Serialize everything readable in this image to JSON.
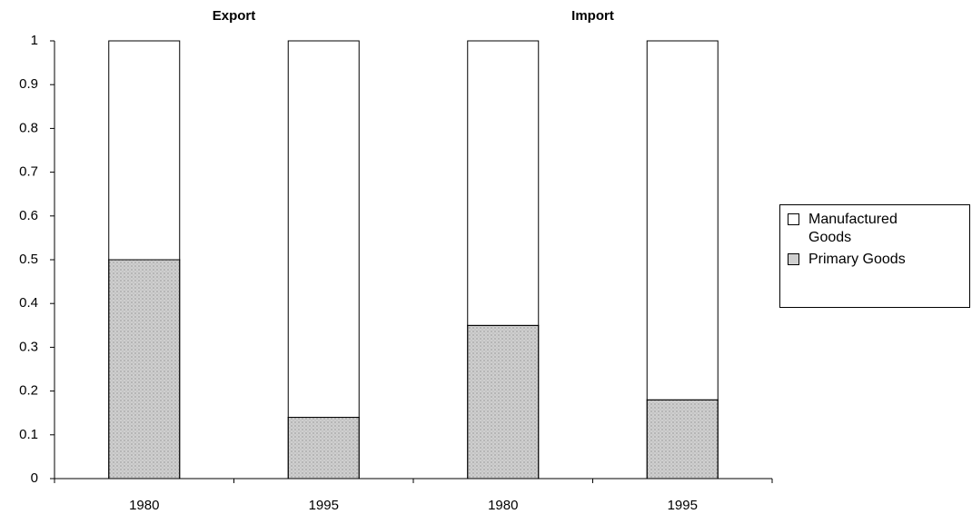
{
  "chart_data": {
    "type": "stacked_bar",
    "group_labels": [
      "Export",
      "Import"
    ],
    "categories": [
      "1980",
      "1995",
      "1980",
      "1995"
    ],
    "series": [
      {
        "name": "Primary Goods",
        "color": "#cfcfcf",
        "values": [
          0.5,
          0.14,
          0.35,
          0.18
        ]
      },
      {
        "name": "Manufactured Goods",
        "color": "#ffffff",
        "values": [
          0.5,
          0.86,
          0.65,
          0.82
        ]
      }
    ],
    "legend_order": [
      1,
      0
    ],
    "legend": "right",
    "ylim": [
      0,
      1
    ],
    "yticks": [
      0,
      0.1,
      0.2,
      0.3,
      0.4,
      0.5,
      0.6,
      0.7,
      0.8,
      0.9,
      1
    ]
  }
}
